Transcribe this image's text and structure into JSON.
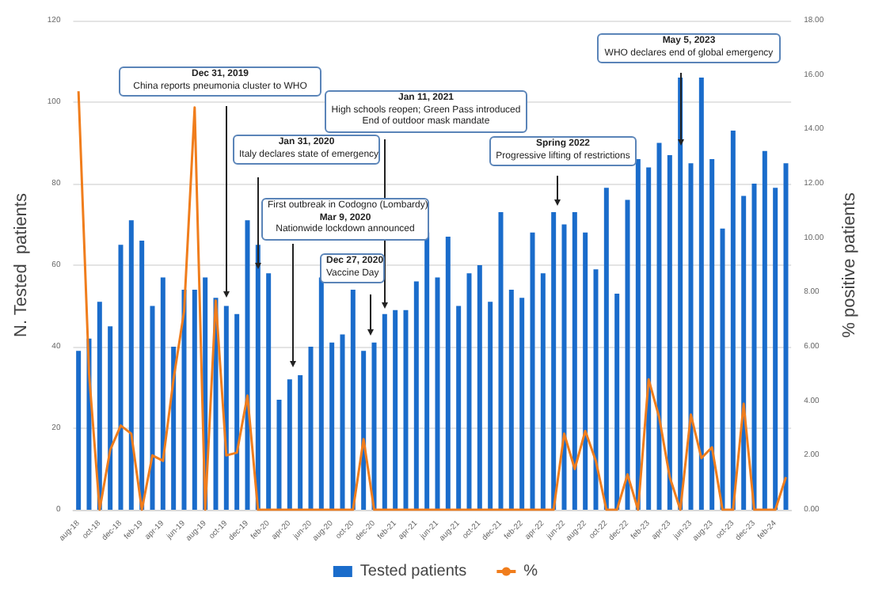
{
  "chart_data": {
    "type": "bar",
    "ylabel": "N. Tested  patients",
    "y2label": "% positive patients",
    "categories": [
      "aug-18",
      null,
      "oct-18",
      null,
      "dec-18",
      null,
      "feb-19",
      null,
      "apr-19",
      null,
      "jun-19",
      null,
      "aug-19",
      null,
      "oct-19",
      null,
      "dec-19",
      null,
      "feb-20",
      null,
      "apr-20",
      null,
      "jun-20",
      null,
      "aug-20",
      null,
      "oct-20",
      null,
      "dec-20",
      null,
      "feb-21",
      null,
      "apr-21",
      null,
      "jun-21",
      null,
      "aug-21",
      null,
      "oct-21",
      null,
      "dec-21",
      null,
      "feb-22",
      null,
      "apr-22",
      null,
      "jun-22",
      null,
      "aug-22",
      null,
      "oct-22",
      null,
      "dec-22",
      null,
      "feb-23",
      null,
      "apr-23",
      null,
      "jun-23",
      null,
      "aug-23",
      null,
      "oct-23",
      null,
      "dec-23",
      null,
      "feb-24",
      null
    ],
    "series": [
      {
        "name": "Tested patients",
        "color": "#1a6ccb",
        "values": [
          39,
          42,
          51,
          45,
          65,
          71,
          66,
          50,
          57,
          40,
          54,
          54,
          57,
          52,
          50,
          48,
          71,
          65,
          58,
          27,
          32,
          33,
          40,
          57,
          41,
          43,
          54,
          39,
          41,
          48,
          49,
          49,
          56,
          68,
          57,
          67,
          50,
          58,
          60,
          51,
          73,
          54,
          52,
          68,
          58,
          73,
          70,
          73,
          68,
          59,
          79,
          53,
          76,
          86,
          84,
          90,
          87,
          106,
          85,
          106,
          86,
          69,
          93,
          77,
          80,
          88,
          79,
          85
        ]
      },
      {
        "name": "%",
        "type": "line",
        "axis": "y2",
        "color": "#f07d1c",
        "values": [
          15.4,
          5.0,
          0,
          2.2,
          3.1,
          2.8,
          0,
          2.0,
          1.8,
          4.8,
          7.3,
          14.8,
          0,
          7.7,
          2.0,
          2.1,
          4.2,
          0,
          0,
          0,
          0,
          0,
          0,
          0,
          0,
          0,
          0,
          2.6,
          0,
          0,
          0,
          0,
          0,
          0,
          0,
          0,
          0,
          0,
          0,
          0,
          0,
          0,
          0,
          0,
          0,
          0,
          2.8,
          1.5,
          2.9,
          1.8,
          0,
          0,
          1.3,
          0,
          4.8,
          3.4,
          1.2,
          0,
          3.5,
          1.9,
          2.3,
          0,
          0,
          3.9,
          0,
          0,
          0,
          1.2
        ]
      }
    ],
    "ylim": [
      0,
      120
    ],
    "yticks": [
      0,
      20,
      40,
      60,
      80,
      100,
      120
    ],
    "y2lim": [
      0,
      18
    ],
    "y2ticks": [
      {
        "value": 0,
        "label": "0.00"
      },
      {
        "value": 2,
        "label": "2.00"
      },
      {
        "value": 4,
        "label": "4.00"
      },
      {
        "value": 6,
        "label": "6.00"
      },
      {
        "value": 8,
        "label": "8.00"
      },
      {
        "value": 10,
        "label": "10.00"
      },
      {
        "value": 12,
        "label": "12.00"
      },
      {
        "value": 14,
        "label": "14.00"
      },
      {
        "value": 16,
        "label": "16.00"
      },
      {
        "value": 18,
        "label": "18.00"
      }
    ],
    "grid": "y",
    "legend": "bottom",
    "marker": "none",
    "annotations": [
      "Dec 31, 2019\nChina reports pneumonia cluster to WHO",
      "Jan 31, 2020\nItaly declares state of emergency",
      "First outbreak in Codogno (Lombardy)\nMar 9, 2020\nNationwide lockdown announced",
      "Dec 27, 2020\nVaccine Day",
      "Jan 11, 2021\nHigh schools reopen; Green Pass introduced\nEnd of outdoor mask mandate",
      "Spring 2022\nProgressive lifting of restrictions",
      "May 5, 2023\nWHO declares end of global emergency"
    ]
  }
}
